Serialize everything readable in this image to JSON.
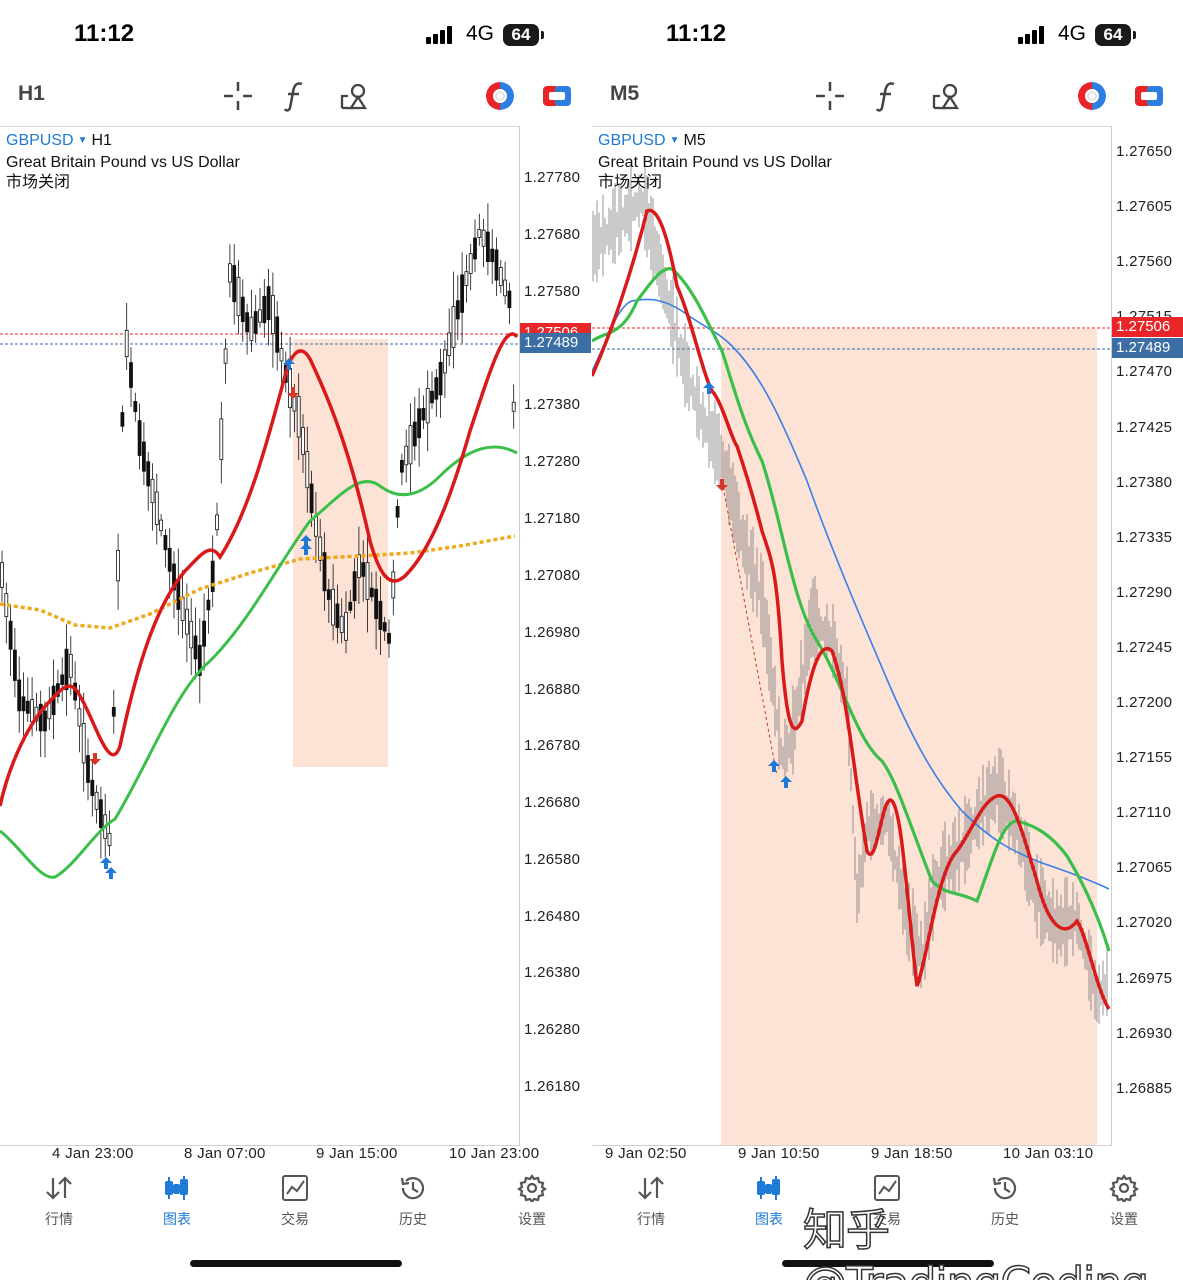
{
  "screens": [
    {
      "status": {
        "time": "11:12",
        "network": "4G",
        "battery": "64"
      },
      "timeframe": "H1",
      "chart": {
        "symbol": "GBPUSD",
        "symbol_tf": "H1",
        "description": "Great Britain Pound vs US Dollar",
        "market_state": "市场关闭",
        "price_ticks": [
          "1.27780",
          "1.27680",
          "1.27580",
          "1.27380",
          "1.27280",
          "1.27180",
          "1.27080",
          "1.26980",
          "1.26880",
          "1.26780",
          "1.26680",
          "1.26580",
          "1.26480",
          "1.26380",
          "1.26280",
          "1.26180"
        ],
        "bid_badge": "1.27506",
        "ask_badge": "1.27489",
        "time_ticks": [
          "4 Jan 23:00",
          "8 Jan 07:00",
          "9 Jan 15:00",
          "10 Jan 23:00"
        ]
      }
    },
    {
      "status": {
        "time": "11:12",
        "network": "4G",
        "battery": "64"
      },
      "timeframe": "M5",
      "chart": {
        "symbol": "GBPUSD",
        "symbol_tf": "M5",
        "description": "Great Britain Pound vs US Dollar",
        "market_state": "市场关闭",
        "price_ticks": [
          "1.27650",
          "1.27605",
          "1.27560",
          "1.27515",
          "1.27470",
          "1.27425",
          "1.27380",
          "1.27335",
          "1.27290",
          "1.27245",
          "1.27200",
          "1.27155",
          "1.27110",
          "1.27065",
          "1.27020",
          "1.26975",
          "1.26930",
          "1.26885"
        ],
        "bid_badge": "1.27506",
        "ask_badge": "1.27489",
        "time_ticks": [
          "9 Jan 02:50",
          "9 Jan 10:50",
          "9 Jan 18:50",
          "10 Jan 03:10"
        ]
      }
    }
  ],
  "nav": [
    {
      "label": "行情",
      "icon": "quotes-icon"
    },
    {
      "label": "图表",
      "icon": "chart-icon"
    },
    {
      "label": "交易",
      "icon": "trade-icon"
    },
    {
      "label": "历史",
      "icon": "history-icon"
    },
    {
      "label": "设置",
      "icon": "settings-icon"
    }
  ],
  "active_nav": "图表",
  "watermark": "知乎 @TradingCoding",
  "colors": {
    "accent": "#1e7ad6",
    "bid": "#e8262a",
    "ask": "#3a6ea5",
    "zone": "#fde2d6",
    "ma_red": "#d91a1a",
    "ma_green": "#3cbf4a",
    "ma_orange": "#f0a81c",
    "ma_blue": "#3a7ee8"
  }
}
